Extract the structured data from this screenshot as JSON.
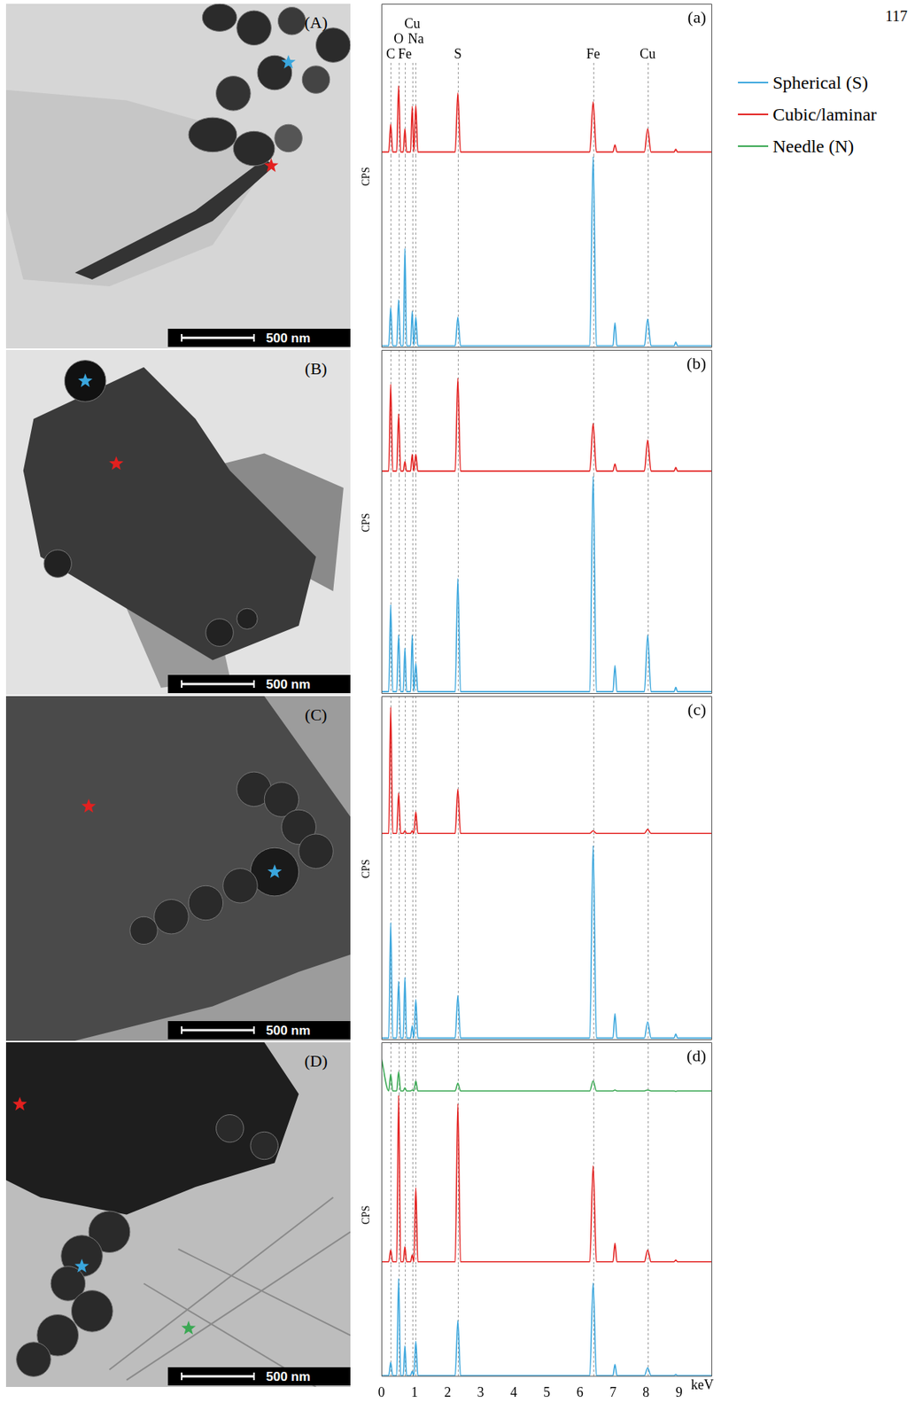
{
  "page_number": "117",
  "legend": "right",
  "element_lines": [
    {
      "label": "C",
      "x": 0.28
    },
    {
      "label": "O",
      "x": 0.52
    },
    {
      "label": "Fe",
      "x": 0.71
    },
    {
      "label": "Cu",
      "x": 0.93
    },
    {
      "label": "Na",
      "x": 1.04
    },
    {
      "label": "S",
      "x": 2.31
    },
    {
      "label": "Fe",
      "x": 6.4
    },
    {
      "label": "Cu",
      "x": 8.05
    }
  ],
  "images": [
    {
      "label": "(A)",
      "scale_bar": "500 nm"
    },
    {
      "label": "(B)",
      "scale_bar": "500 nm"
    },
    {
      "label": "(C)",
      "scale_bar": "500 nm"
    },
    {
      "label": "(D)",
      "scale_bar": "500 nm"
    }
  ],
  "chart_data": [
    {
      "type": "line",
      "title": "(a)",
      "y_label": "CPS",
      "xlim": [
        0,
        10
      ],
      "ylim": [
        0,
        100
      ],
      "tick_labels": false,
      "x": [
        0,
        0.22,
        0.28,
        0.34,
        0.46,
        0.52,
        0.58,
        0.66,
        0.71,
        0.76,
        0.88,
        0.93,
        0.98,
        1.04,
        1.1,
        2.23,
        2.31,
        2.39,
        6.3,
        6.4,
        6.5,
        7.0,
        7.06,
        7.12,
        7.95,
        8.05,
        8.15,
        8.85,
        8.9,
        8.95,
        10
      ],
      "series": [
        {
          "name": "Spherical (S)",
          "color": "#3aa6dd",
          "values": [
            1,
            1,
            21,
            1,
            1,
            25,
            1,
            1,
            52,
            1,
            1,
            19,
            1,
            16,
            1,
            1,
            16,
            1,
            1,
            100,
            1,
            1,
            13,
            1,
            1,
            15,
            1,
            1,
            3,
            1,
            1
          ]
        },
        {
          "name": "Cubic/laminar",
          "color": "#e3201f",
          "values": [
            2,
            2,
            33,
            2,
            2,
            76,
            2,
            2,
            28,
            2,
            2,
            53,
            2,
            54,
            2,
            2,
            68,
            2,
            2,
            58,
            2,
            2,
            10,
            2,
            2,
            28,
            2,
            2,
            5,
            2,
            2
          ]
        }
      ]
    },
    {
      "type": "line",
      "title": "(b)",
      "y_label": "CPS",
      "xlim": [
        0,
        10
      ],
      "ylim": [
        0,
        100
      ],
      "tick_labels": false,
      "x": [
        0,
        0.22,
        0.28,
        0.34,
        0.46,
        0.52,
        0.58,
        0.66,
        0.71,
        0.76,
        0.88,
        0.93,
        0.98,
        1.04,
        1.1,
        2.23,
        2.31,
        2.39,
        6.3,
        6.4,
        6.5,
        7.0,
        7.06,
        7.12,
        7.95,
        8.05,
        8.15,
        8.85,
        8.9,
        8.95,
        10
      ],
      "series": [
        {
          "name": "Spherical (S)",
          "color": "#3aa6dd",
          "values": [
            1,
            1,
            41,
            1,
            1,
            27,
            1,
            1,
            21,
            1,
            1,
            27,
            1,
            14,
            1,
            1,
            53,
            1,
            1,
            100,
            1,
            1,
            13,
            1,
            1,
            27,
            1,
            1,
            3,
            1,
            1
          ]
        },
        {
          "name": "Cubic/laminar",
          "color": "#e3201f",
          "values": [
            2,
            2,
            75,
            2,
            2,
            50,
            2,
            2,
            10,
            2,
            2,
            16,
            2,
            16,
            2,
            2,
            80,
            2,
            2,
            42,
            2,
            2,
            8,
            2,
            2,
            28,
            2,
            2,
            5,
            2,
            2
          ]
        }
      ]
    },
    {
      "type": "line",
      "title": "(c)",
      "y_label": "CPS",
      "xlim": [
        0,
        10
      ],
      "ylim": [
        0,
        100
      ],
      "tick_labels": false,
      "x": [
        0,
        0.22,
        0.28,
        0.34,
        0.46,
        0.52,
        0.58,
        0.66,
        0.71,
        0.76,
        0.88,
        0.93,
        0.98,
        1.04,
        1.1,
        2.23,
        2.31,
        2.39,
        6.3,
        6.4,
        6.5,
        7.0,
        7.06,
        7.12,
        7.95,
        8.05,
        8.15,
        8.85,
        8.9,
        8.95,
        10
      ],
      "series": [
        {
          "name": "Spherical (S)",
          "color": "#3aa6dd",
          "values": [
            1,
            1,
            58,
            1,
            1,
            29,
            1,
            1,
            31,
            1,
            1,
            7,
            1,
            20,
            1,
            1,
            22,
            1,
            1,
            96,
            1,
            1,
            13,
            1,
            1,
            9,
            1,
            1,
            3,
            1,
            1
          ]
        },
        {
          "name": "Cubic/laminar",
          "color": "#e3201f",
          "values": [
            1,
            1,
            95,
            1,
            1,
            31,
            1,
            1,
            3,
            1,
            1,
            3,
            1,
            17,
            1,
            1,
            34,
            1,
            1,
            3,
            1,
            1,
            1,
            1,
            1,
            4,
            1,
            1,
            1,
            1,
            1
          ]
        }
      ]
    },
    {
      "type": "line",
      "title": "(d)",
      "y_label": "CPS",
      "x_label": "keV",
      "xlim": [
        0,
        10
      ],
      "xticks": [
        0,
        1,
        2,
        3,
        4,
        5,
        6,
        7,
        8,
        9
      ],
      "ylim": [
        0,
        100
      ],
      "tick_labels": "x",
      "x": [
        0,
        0.22,
        0.28,
        0.34,
        0.46,
        0.52,
        0.58,
        0.66,
        0.71,
        0.76,
        0.88,
        0.93,
        0.98,
        1.04,
        1.1,
        2.23,
        2.31,
        2.39,
        6.3,
        6.4,
        6.5,
        7.0,
        7.06,
        7.12,
        7.95,
        8.05,
        8.15,
        8.85,
        8.9,
        8.95,
        10
      ],
      "series": [
        {
          "name": "Spherical (S)",
          "color": "#3aa6dd",
          "values": [
            1,
            1,
            13,
            1,
            1,
            89,
            1,
            1,
            28,
            1,
            1,
            5,
            1,
            32,
            1,
            1,
            51,
            1,
            1,
            85,
            1,
            1,
            11,
            1,
            1,
            8,
            1,
            1,
            2,
            1,
            1
          ]
        },
        {
          "name": "Cubic/laminar",
          "color": "#e3201f",
          "values": [
            1,
            1,
            8,
            1,
            1,
            100,
            1,
            1,
            10,
            1,
            1,
            5,
            1,
            45,
            1,
            1,
            95,
            1,
            1,
            58,
            1,
            1,
            12,
            1,
            1,
            8,
            1,
            1,
            2,
            1,
            1
          ]
        },
        {
          "name": "Needle (N)",
          "color": "#3aa853",
          "values": [
            75,
            3,
            40,
            3,
            3,
            45,
            3,
            3,
            10,
            3,
            3,
            5,
            3,
            25,
            3,
            3,
            20,
            3,
            3,
            25,
            3,
            3,
            5,
            3,
            3,
            5,
            3,
            3,
            2,
            3,
            3
          ]
        }
      ]
    }
  ]
}
